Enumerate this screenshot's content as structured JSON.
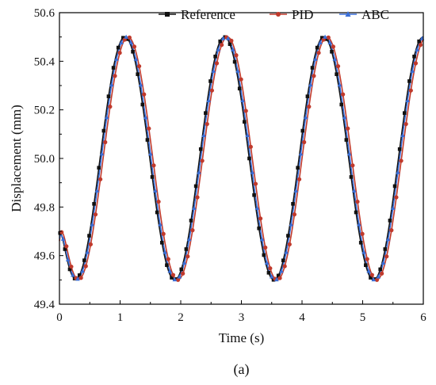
{
  "chart_data": {
    "type": "line",
    "xlabel": "Time (s)",
    "ylabel": "Displacement (mm)",
    "caption": "(a)",
    "xlim": [
      0,
      6
    ],
    "ylim": [
      49.4,
      50.6
    ],
    "x_ticks": [
      "0",
      "1",
      "2",
      "3",
      "4",
      "5",
      "6"
    ],
    "y_ticks": [
      "49.4",
      "49.6",
      "49.8",
      "50.0",
      "50.2",
      "50.4",
      "50.6"
    ],
    "grid": false,
    "legend_position": "top-right",
    "series": [
      {
        "name": "Reference",
        "color": "#111111",
        "marker": "square",
        "model": {
          "offset": 50.0,
          "amplitude": 0.5,
          "period": 1.64,
          "peak_time": 1.08,
          "start_value": 49.69
        }
      },
      {
        "name": "PID",
        "color": "#c0392b",
        "marker": "circle",
        "model": {
          "offset": 50.0,
          "amplitude": 0.5,
          "period": 1.64,
          "peak_time": 1.13,
          "start_value": 49.66
        }
      },
      {
        "name": "ABC",
        "color": "#3a6fd8",
        "marker": "triangle",
        "model": {
          "offset": 50.0,
          "amplitude": 0.5,
          "period": 1.64,
          "peak_time": 1.1,
          "start_value": 49.67
        }
      }
    ]
  }
}
